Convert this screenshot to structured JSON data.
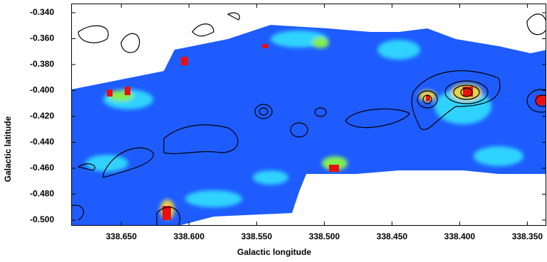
{
  "chart_data": {
    "type": "heatmap",
    "x_label": "Galactic longitude",
    "y_label": "Galactic latitude",
    "xlim": [
      338.687,
      338.336
    ],
    "ylim": [
      -0.5044,
      -0.3329
    ],
    "xticks": [
      {
        "value": 338.65,
        "label": "338.650"
      },
      {
        "value": 338.6,
        "label": "338.600"
      },
      {
        "value": 338.55,
        "label": "338.550"
      },
      {
        "value": 338.5,
        "label": "338.500"
      },
      {
        "value": 338.45,
        "label": "338.450"
      },
      {
        "value": 338.4,
        "label": "338.400"
      },
      {
        "value": 338.35,
        "label": "338.350"
      }
    ],
    "yticks": [
      {
        "value": -0.34,
        "label": "-0.340"
      },
      {
        "value": -0.36,
        "label": "-0.360"
      },
      {
        "value": -0.38,
        "label": "-0.380"
      },
      {
        "value": -0.4,
        "label": "-0.400"
      },
      {
        "value": -0.42,
        "label": "-0.420"
      },
      {
        "value": -0.44,
        "label": "-0.440"
      },
      {
        "value": -0.46,
        "label": "-0.460"
      },
      {
        "value": -0.48,
        "label": "-0.480"
      },
      {
        "value": -0.5,
        "label": "-0.500"
      }
    ]
  }
}
